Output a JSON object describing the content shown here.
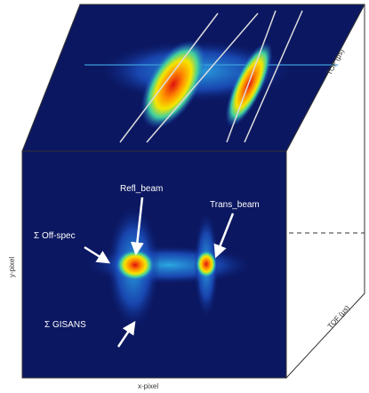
{
  "labels": {
    "refl_beam": "Refl_beam",
    "trans_beam": "Trans_beam",
    "off_spec": "Σ Off-spec",
    "gisans": "Σ GISANS",
    "tof_top": "TOF (µs)",
    "tof_side": "TOF (µs)",
    "y_axis": "y-pixel",
    "x_axis": "x-pixel"
  }
}
